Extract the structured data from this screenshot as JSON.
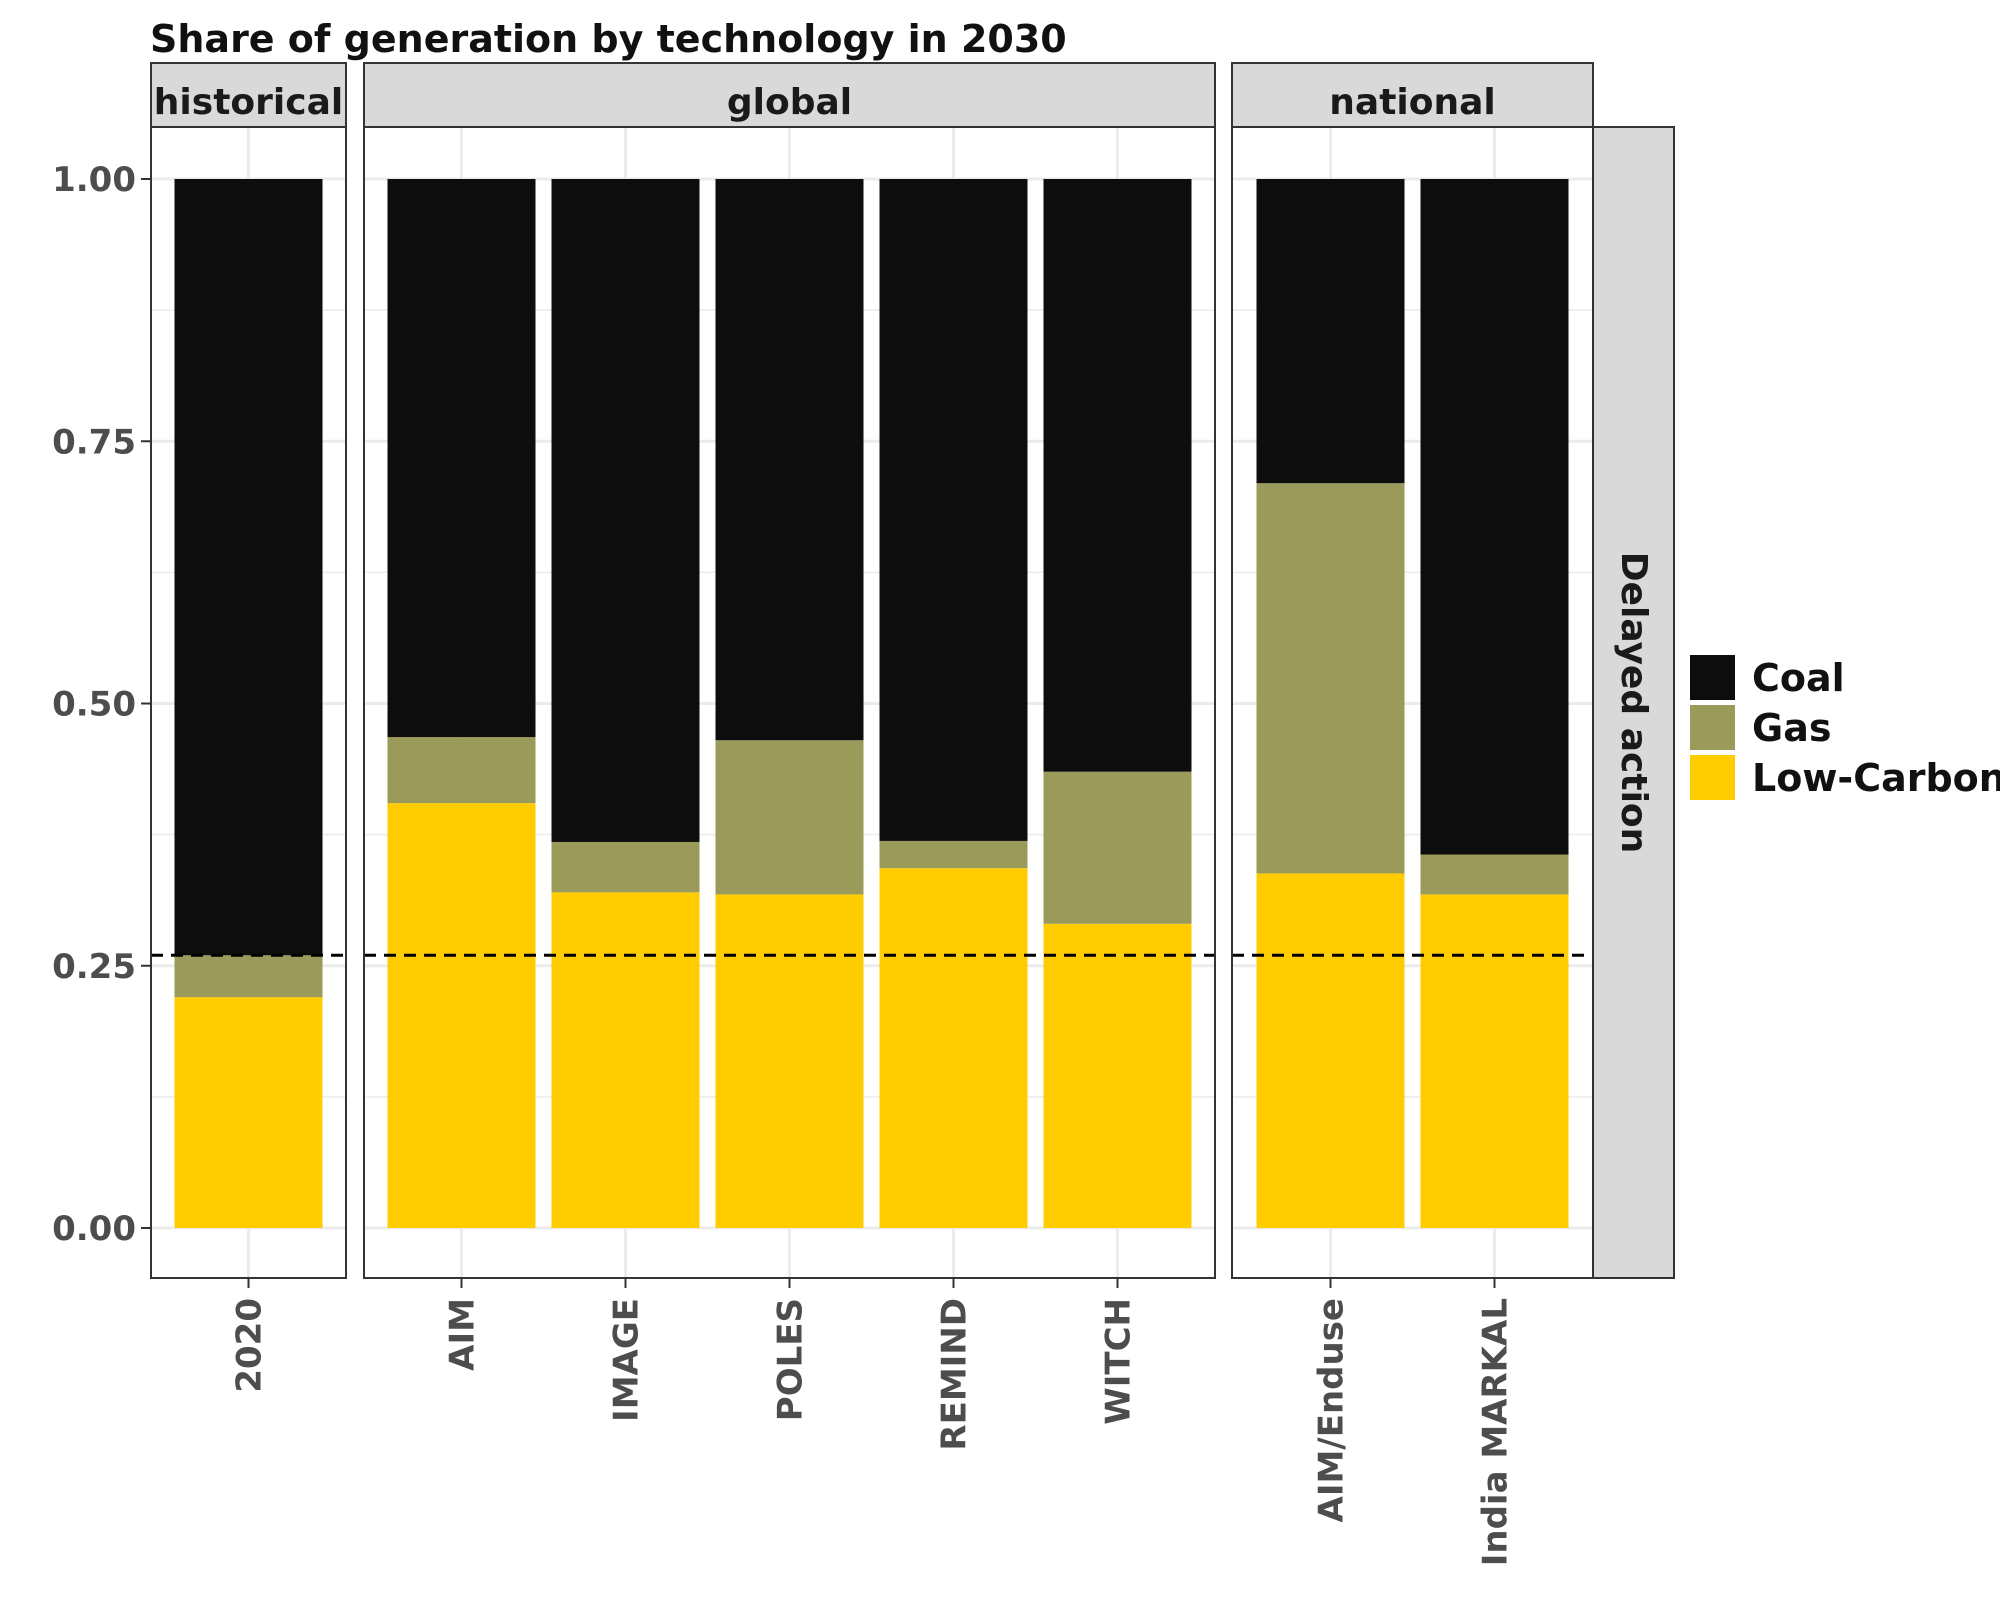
{
  "chart_data": {
    "type": "bar",
    "stacked": true,
    "title": "Share of generation by technology in 2030",
    "facet_row_label": "Delayed action",
    "ylim": [
      0,
      1
    ],
    "yticks": [
      "0.00",
      "0.25",
      "0.50",
      "0.75",
      "1.00"
    ],
    "yticks_values": [
      0,
      0.25,
      0.5,
      0.75,
      1.0
    ],
    "reference_line": 0.26,
    "grid": true,
    "legend_position": "right",
    "series": [
      {
        "name": "Low-Carbon",
        "color": "#FFCC00"
      },
      {
        "name": "Gas",
        "color": "#9A9A5A"
      },
      {
        "name": "Coal",
        "color": "#0D0D0D"
      }
    ],
    "legend_order": [
      "Coal",
      "Gas",
      "Low-Carbon"
    ],
    "panels": [
      {
        "facet": "historical",
        "categories": [
          "2020"
        ],
        "values": {
          "Low-Carbon": [
            0.22
          ],
          "Gas": [
            0.04
          ],
          "Coal": [
            0.74
          ]
        }
      },
      {
        "facet": "global",
        "categories": [
          "AIM",
          "IMAGE",
          "POLES",
          "REMIND",
          "WITCH"
        ],
        "values": {
          "Low-Carbon": [
            0.405,
            0.32,
            0.318,
            0.343,
            0.29
          ],
          "Gas": [
            0.063,
            0.048,
            0.147,
            0.026,
            0.145
          ],
          "Coal": [
            0.532,
            0.632,
            0.535,
            0.631,
            0.565
          ]
        }
      },
      {
        "facet": "national",
        "categories": [
          "AIM/Enduse",
          "India MARKAL"
        ],
        "values": {
          "Low-Carbon": [
            0.338,
            0.318
          ],
          "Gas": [
            0.372,
            0.038
          ],
          "Coal": [
            0.29,
            0.644
          ]
        }
      }
    ]
  },
  "colors": {
    "panel_border": "#333333",
    "strip_fill": "#D9D9D9",
    "grid": "#EBEBEB"
  }
}
